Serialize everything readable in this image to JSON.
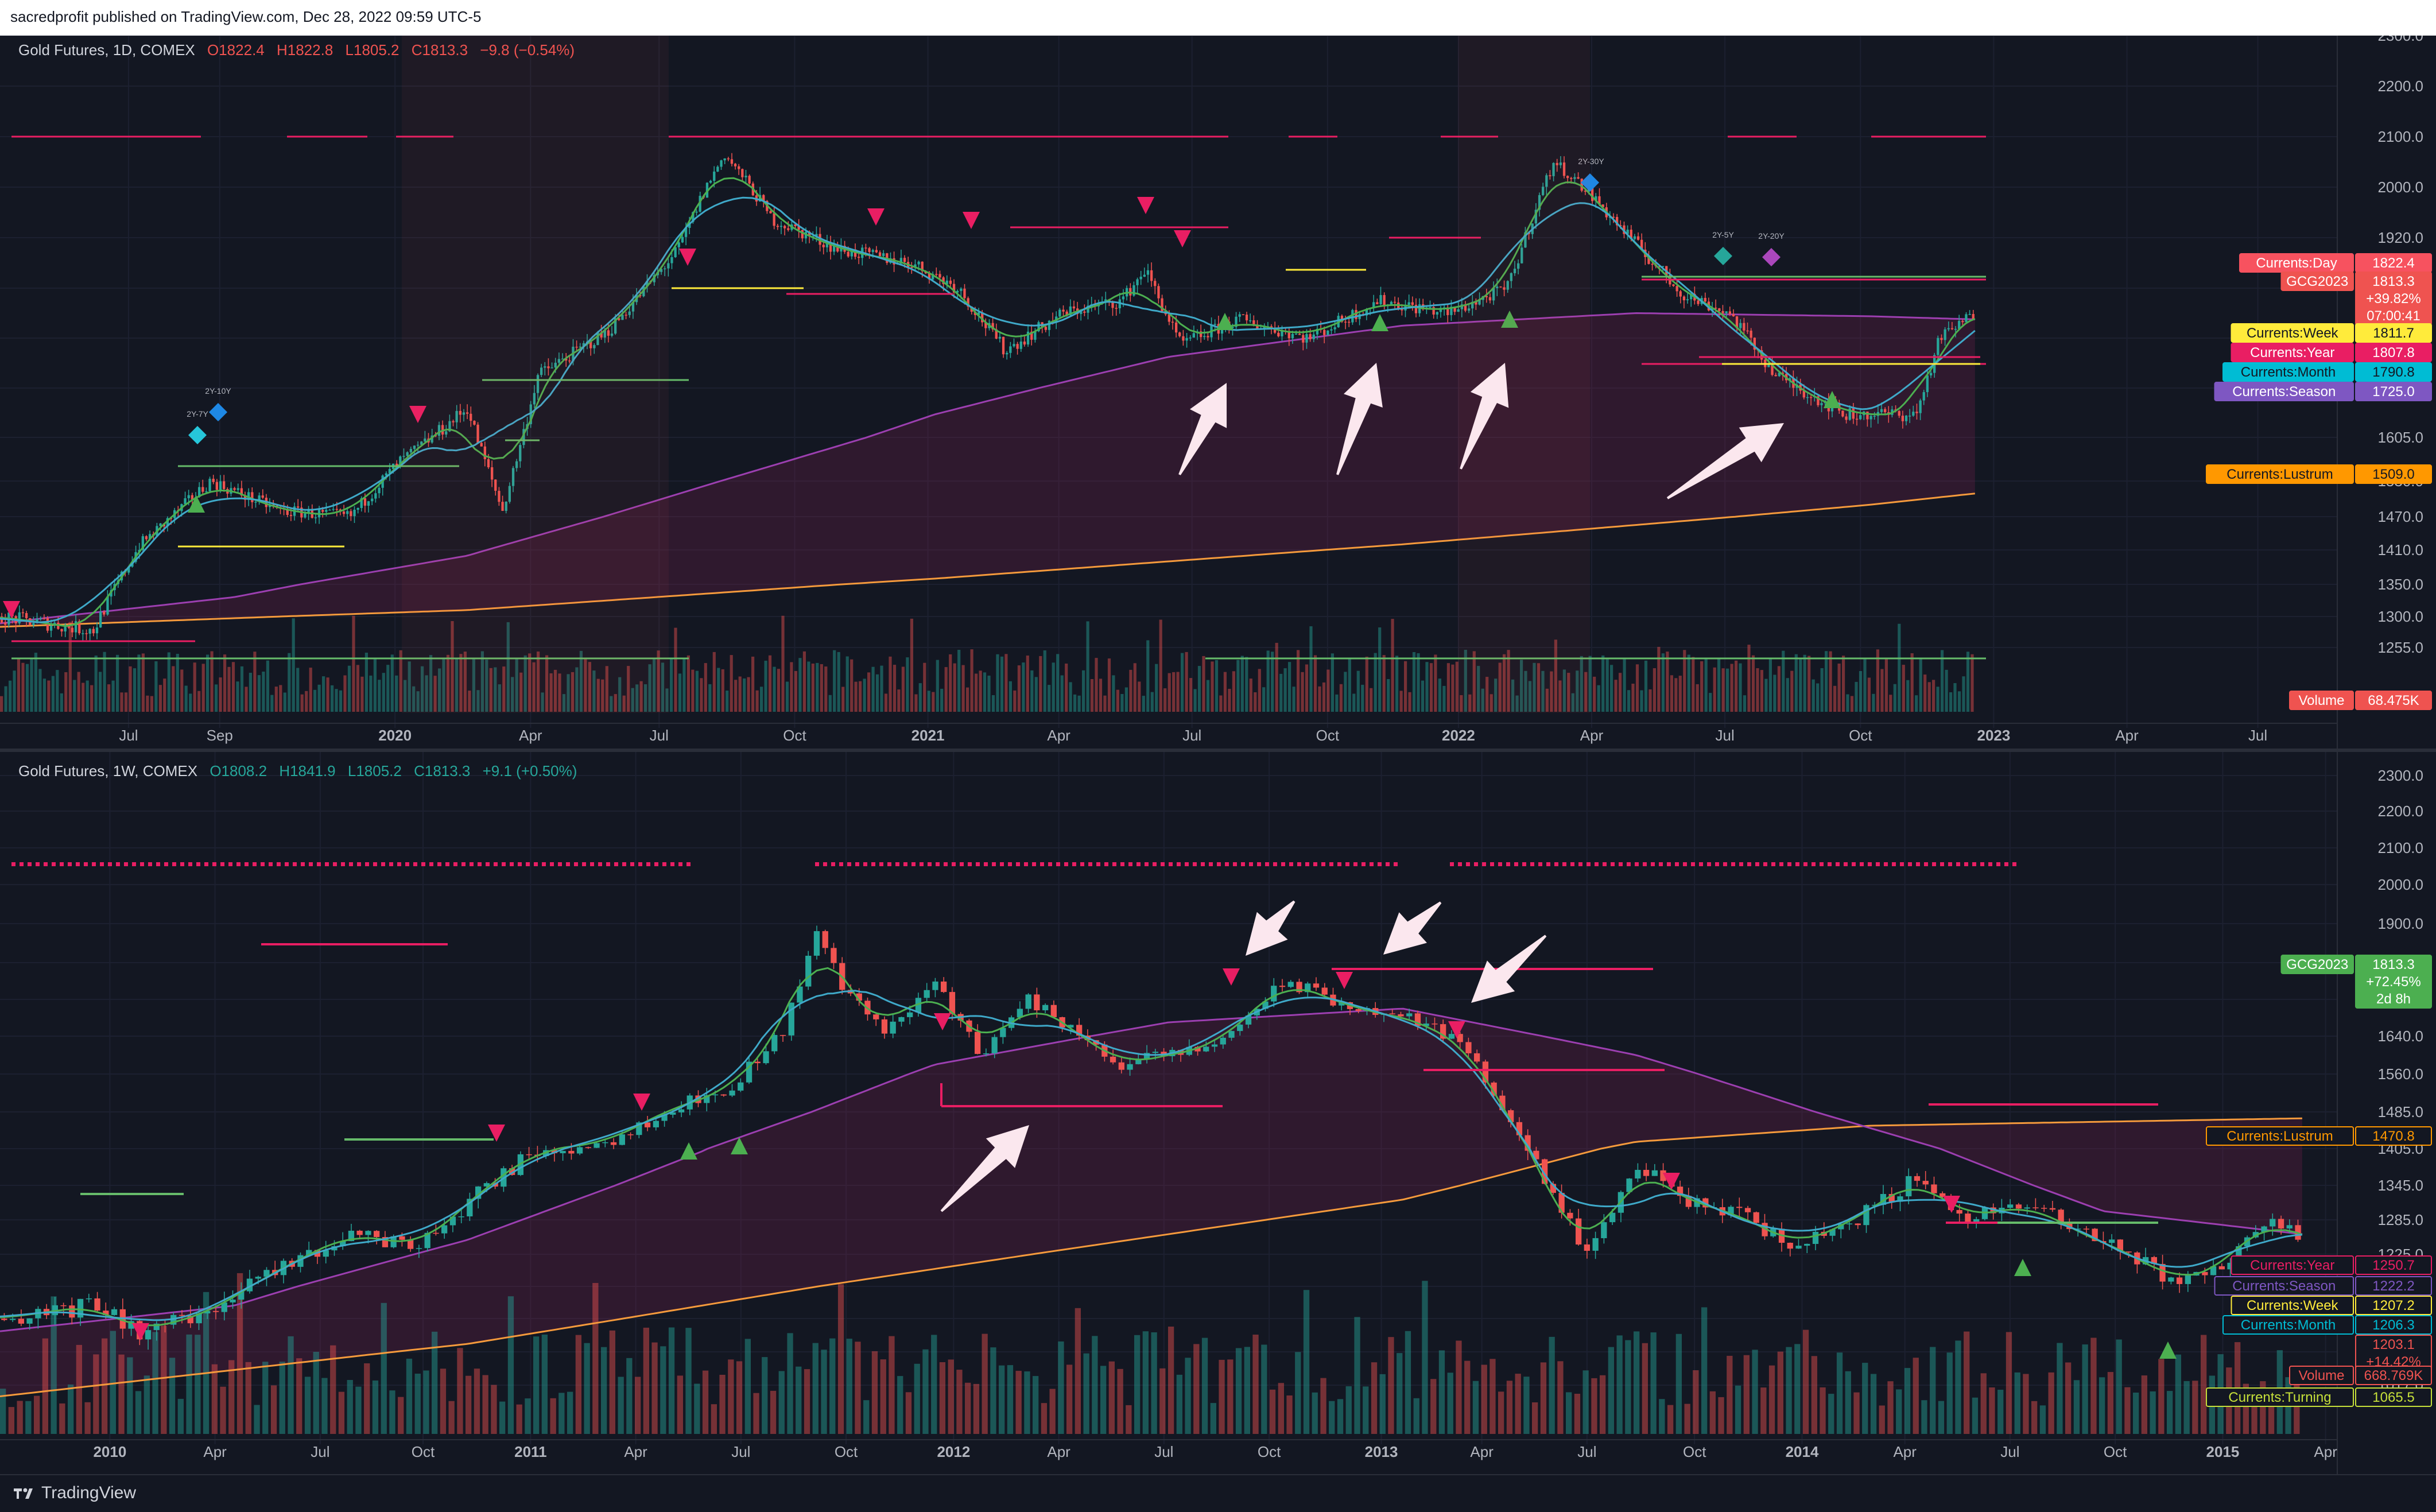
{
  "header": {
    "published": "sacredprofit published on TradingView.com, Dec 28, 2022 09:59 UTC-5"
  },
  "footer": {
    "brand": "TradingView"
  },
  "colors": {
    "up": "#26a69a",
    "down": "#ef5350",
    "bg": "#131722",
    "grid": "#1e222d",
    "text": "#b2b5be"
  },
  "chart_data": [
    {
      "type": "line",
      "legend": {
        "symbol": "Gold Futures, 1D, COMEX",
        "open": "O1822.4",
        "high": "H1822.8",
        "low": "L1805.2",
        "close": "C1813.3",
        "change": "−9.8 (−0.54%)"
      },
      "x_ticks": [
        {
          "label": "Jul",
          "t": 0.055
        },
        {
          "label": "Sep",
          "t": 0.094
        },
        {
          "label": "2020",
          "t": 0.169,
          "bold": true
        },
        {
          "label": "Apr",
          "t": 0.227
        },
        {
          "label": "Jul",
          "t": 0.282
        },
        {
          "label": "Oct",
          "t": 0.34
        },
        {
          "label": "2021",
          "t": 0.397,
          "bold": true
        },
        {
          "label": "Apr",
          "t": 0.453
        },
        {
          "label": "Jul",
          "t": 0.51
        },
        {
          "label": "Oct",
          "t": 0.568
        },
        {
          "label": "2022",
          "t": 0.624,
          "bold": true
        },
        {
          "label": "Apr",
          "t": 0.681
        },
        {
          "label": "Jul",
          "t": 0.738
        },
        {
          "label": "Oct",
          "t": 0.796
        },
        {
          "label": "2023",
          "t": 0.853,
          "bold": true
        },
        {
          "label": "Apr",
          "t": 0.91
        },
        {
          "label": "Jul",
          "t": 0.966
        }
      ],
      "y_ticks": [
        "2300.0",
        "2200.0",
        "2100.0",
        "2000.0",
        "1920.0",
        "1840.0",
        "1760.0",
        "1680.0",
        "1605.0",
        "1530.0",
        "1470.0",
        "1410.0",
        "1350.0",
        "1300.0",
        "1255.0"
      ],
      "y_tick_values": [
        2300,
        2200,
        2100,
        2000,
        1920,
        1840,
        1760,
        1680,
        1605,
        1530,
        1470,
        1410,
        1350,
        1300,
        1255
      ],
      "price_path": [
        [
          0.0,
          1300
        ],
        [
          0.04,
          1280
        ],
        [
          0.06,
          1420
        ],
        [
          0.09,
          1530
        ],
        [
          0.12,
          1480
        ],
        [
          0.15,
          1470
        ],
        [
          0.17,
          1560
        ],
        [
          0.2,
          1650
        ],
        [
          0.215,
          1480
        ],
        [
          0.23,
          1700
        ],
        [
          0.26,
          1770
        ],
        [
          0.29,
          1900
        ],
        [
          0.31,
          2065
        ],
        [
          0.33,
          1950
        ],
        [
          0.36,
          1900
        ],
        [
          0.39,
          1880
        ],
        [
          0.41,
          1840
        ],
        [
          0.43,
          1740
        ],
        [
          0.455,
          1800
        ],
        [
          0.48,
          1820
        ],
        [
          0.49,
          1870
        ],
        [
          0.505,
          1750
        ],
        [
          0.53,
          1790
        ],
        [
          0.56,
          1760
        ],
        [
          0.59,
          1820
        ],
        [
          0.62,
          1800
        ],
        [
          0.645,
          1840
        ],
        [
          0.665,
          2050
        ],
        [
          0.69,
          1950
        ],
        [
          0.72,
          1830
        ],
        [
          0.74,
          1800
        ],
        [
          0.76,
          1700
        ],
        [
          0.79,
          1640
        ],
        [
          0.82,
          1640
        ],
        [
          0.83,
          1760
        ],
        [
          0.845,
          1800
        ]
      ],
      "ma_slow": [
        [
          0.0,
          1290
        ],
        [
          0.1,
          1330
        ],
        [
          0.2,
          1400
        ],
        [
          0.3,
          1520
        ],
        [
          0.4,
          1640
        ],
        [
          0.5,
          1730
        ],
        [
          0.6,
          1780
        ],
        [
          0.7,
          1800
        ],
        [
          0.8,
          1795
        ],
        [
          0.845,
          1790
        ]
      ],
      "ma_200": [
        [
          0.0,
          1285
        ],
        [
          0.2,
          1310
        ],
        [
          0.4,
          1360
        ],
        [
          0.6,
          1420
        ],
        [
          0.8,
          1490
        ],
        [
          0.845,
          1509
        ]
      ],
      "labels": [
        {
          "text": "Currents:Day",
          "value": "1822.4",
          "color": "#f7525f",
          "style": "orange"
        },
        {
          "text": "GCG2023",
          "value": "1813.3",
          "extra": [
            "+39.82%",
            "07:00:41"
          ],
          "color": "#ef5350"
        },
        {
          "text": "Currents:Week",
          "value": "1811.7",
          "color": "#ffeb3b",
          "textcolor": "#131722"
        },
        {
          "text": "Currents:Year",
          "value": "1807.8",
          "color": "#e91e63"
        },
        {
          "text": "Currents:Month",
          "value": "1790.8",
          "color": "#00bcd4",
          "textcolor": "#131722"
        },
        {
          "text": "Currents:Season",
          "value": "1725.0",
          "color": "#7e57c2"
        },
        {
          "text": "Currents:Lustrum",
          "value": "1509.0",
          "color": "#ff9800",
          "textcolor": "#131722"
        },
        {
          "text": "Volume",
          "value": "68.475K",
          "color": "#ef5350"
        }
      ],
      "annotations": [
        "2Y-10Y",
        "2Y-7Y",
        "2Y-30Y",
        "2Y-5Y",
        "2Y-20Y"
      ]
    },
    {
      "type": "line",
      "legend": {
        "symbol": "Gold Futures, 1W, COMEX",
        "open": "O1808.2",
        "high": "H1841.9",
        "low": "L1805.2",
        "close": "C1813.3",
        "change": "+9.1 (+0.50%)"
      },
      "x_ticks": [
        {
          "label": "2010",
          "t": 0.047,
          "bold": true
        },
        {
          "label": "Apr",
          "t": 0.092
        },
        {
          "label": "Jul",
          "t": 0.137
        },
        {
          "label": "Oct",
          "t": 0.181
        },
        {
          "label": "2011",
          "t": 0.227,
          "bold": true
        },
        {
          "label": "Apr",
          "t": 0.272
        },
        {
          "label": "Jul",
          "t": 0.317
        },
        {
          "label": "Oct",
          "t": 0.362
        },
        {
          "label": "2012",
          "t": 0.408,
          "bold": true
        },
        {
          "label": "Apr",
          "t": 0.453
        },
        {
          "label": "Jul",
          "t": 0.498
        },
        {
          "label": "Oct",
          "t": 0.543
        },
        {
          "label": "2013",
          "t": 0.591,
          "bold": true
        },
        {
          "label": "Apr",
          "t": 0.634
        },
        {
          "label": "Jul",
          "t": 0.679
        },
        {
          "label": "Oct",
          "t": 0.725
        },
        {
          "label": "2014",
          "t": 0.771,
          "bold": true
        },
        {
          "label": "Apr",
          "t": 0.815
        },
        {
          "label": "Jul",
          "t": 0.86
        },
        {
          "label": "Oct",
          "t": 0.905
        },
        {
          "label": "2015",
          "t": 0.951,
          "bold": true
        },
        {
          "label": "Apr",
          "t": 0.995
        }
      ],
      "y_ticks": [
        "2300.0",
        "2200.0",
        "2100.0",
        "2000.0",
        "1900.0",
        "1800.0",
        "1720.0",
        "1640.0",
        "1560.0",
        "1485.0",
        "1405.0",
        "1345.0",
        "1285.0",
        "1225.0",
        "1170.0",
        "1120.0",
        "1067.5",
        "1017.0"
      ],
      "y_tick_values": [
        2300,
        2200,
        2100,
        2000,
        1900,
        1800,
        1720,
        1640,
        1560,
        1485,
        1405,
        1345,
        1285,
        1225,
        1170,
        1120,
        1067.5,
        1017
      ],
      "price_path": [
        [
          0.0,
          1120
        ],
        [
          0.04,
          1140
        ],
        [
          0.06,
          1100
        ],
        [
          0.09,
          1130
        ],
        [
          0.12,
          1200
        ],
        [
          0.15,
          1260
        ],
        [
          0.18,
          1240
        ],
        [
          0.21,
          1350
        ],
        [
          0.23,
          1400
        ],
        [
          0.26,
          1420
        ],
        [
          0.29,
          1500
        ],
        [
          0.31,
          1520
        ],
        [
          0.335,
          1650
        ],
        [
          0.35,
          1880
        ],
        [
          0.36,
          1750
        ],
        [
          0.38,
          1650
        ],
        [
          0.4,
          1760
        ],
        [
          0.42,
          1600
        ],
        [
          0.44,
          1720
        ],
        [
          0.46,
          1650
        ],
        [
          0.48,
          1580
        ],
        [
          0.52,
          1620
        ],
        [
          0.55,
          1760
        ],
        [
          0.58,
          1700
        ],
        [
          0.61,
          1670
        ],
        [
          0.63,
          1600
        ],
        [
          0.645,
          1480
        ],
        [
          0.66,
          1350
        ],
        [
          0.68,
          1220
        ],
        [
          0.7,
          1380
        ],
        [
          0.72,
          1320
        ],
        [
          0.74,
          1300
        ],
        [
          0.77,
          1240
        ],
        [
          0.8,
          1300
        ],
        [
          0.82,
          1360
        ],
        [
          0.84,
          1290
        ],
        [
          0.87,
          1310
        ],
        [
          0.89,
          1260
        ],
        [
          0.91,
          1230
        ],
        [
          0.93,
          1180
        ],
        [
          0.95,
          1200
        ],
        [
          0.97,
          1290
        ],
        [
          0.985,
          1250
        ]
      ],
      "ma_slow": [
        [
          0.0,
          1100
        ],
        [
          0.1,
          1140
        ],
        [
          0.2,
          1250
        ],
        [
          0.3,
          1400
        ],
        [
          0.4,
          1580
        ],
        [
          0.5,
          1670
        ],
        [
          0.6,
          1700
        ],
        [
          0.7,
          1600
        ],
        [
          0.8,
          1450
        ],
        [
          0.9,
          1300
        ],
        [
          0.985,
          1260
        ]
      ],
      "ma_200": [
        [
          0.0,
          1000
        ],
        [
          0.2,
          1080
        ],
        [
          0.4,
          1200
        ],
        [
          0.6,
          1320
        ],
        [
          0.7,
          1420
        ],
        [
          0.8,
          1455
        ],
        [
          0.985,
          1471
        ]
      ],
      "labels": [
        {
          "text": "GCG2023",
          "value": "1813.3",
          "extra": [
            "+72.45%",
            "2d 8h"
          ],
          "color": "#4caf50"
        },
        {
          "text": "Currents:Lustrum",
          "value": "1470.8",
          "color": "#ff9800",
          "outline": true
        },
        {
          "text": "Currents:Year",
          "value": "1250.7",
          "color": "#e91e63",
          "outline": true
        },
        {
          "text": "Currents:Season",
          "value": "1222.2",
          "color": "#7e57c2",
          "outline": true
        },
        {
          "text": "Currents:Week",
          "value": "1207.2",
          "color": "#ffeb3b",
          "outline": true
        },
        {
          "text": "Currents:Month",
          "value": "1206.3",
          "color": "#00bcd4",
          "outline": true
        },
        {
          "text": "",
          "value": "1203.1",
          "extra": [
            "+14.42%"
          ],
          "color": "#ef5350",
          "outline": true
        },
        {
          "text": "Volume",
          "value": "668.769K",
          "color": "#ef5350",
          "outline": true
        },
        {
          "text": "Currents:Turning",
          "value": "1065.5",
          "color": "#c6e03a",
          "outline": true
        }
      ]
    }
  ]
}
